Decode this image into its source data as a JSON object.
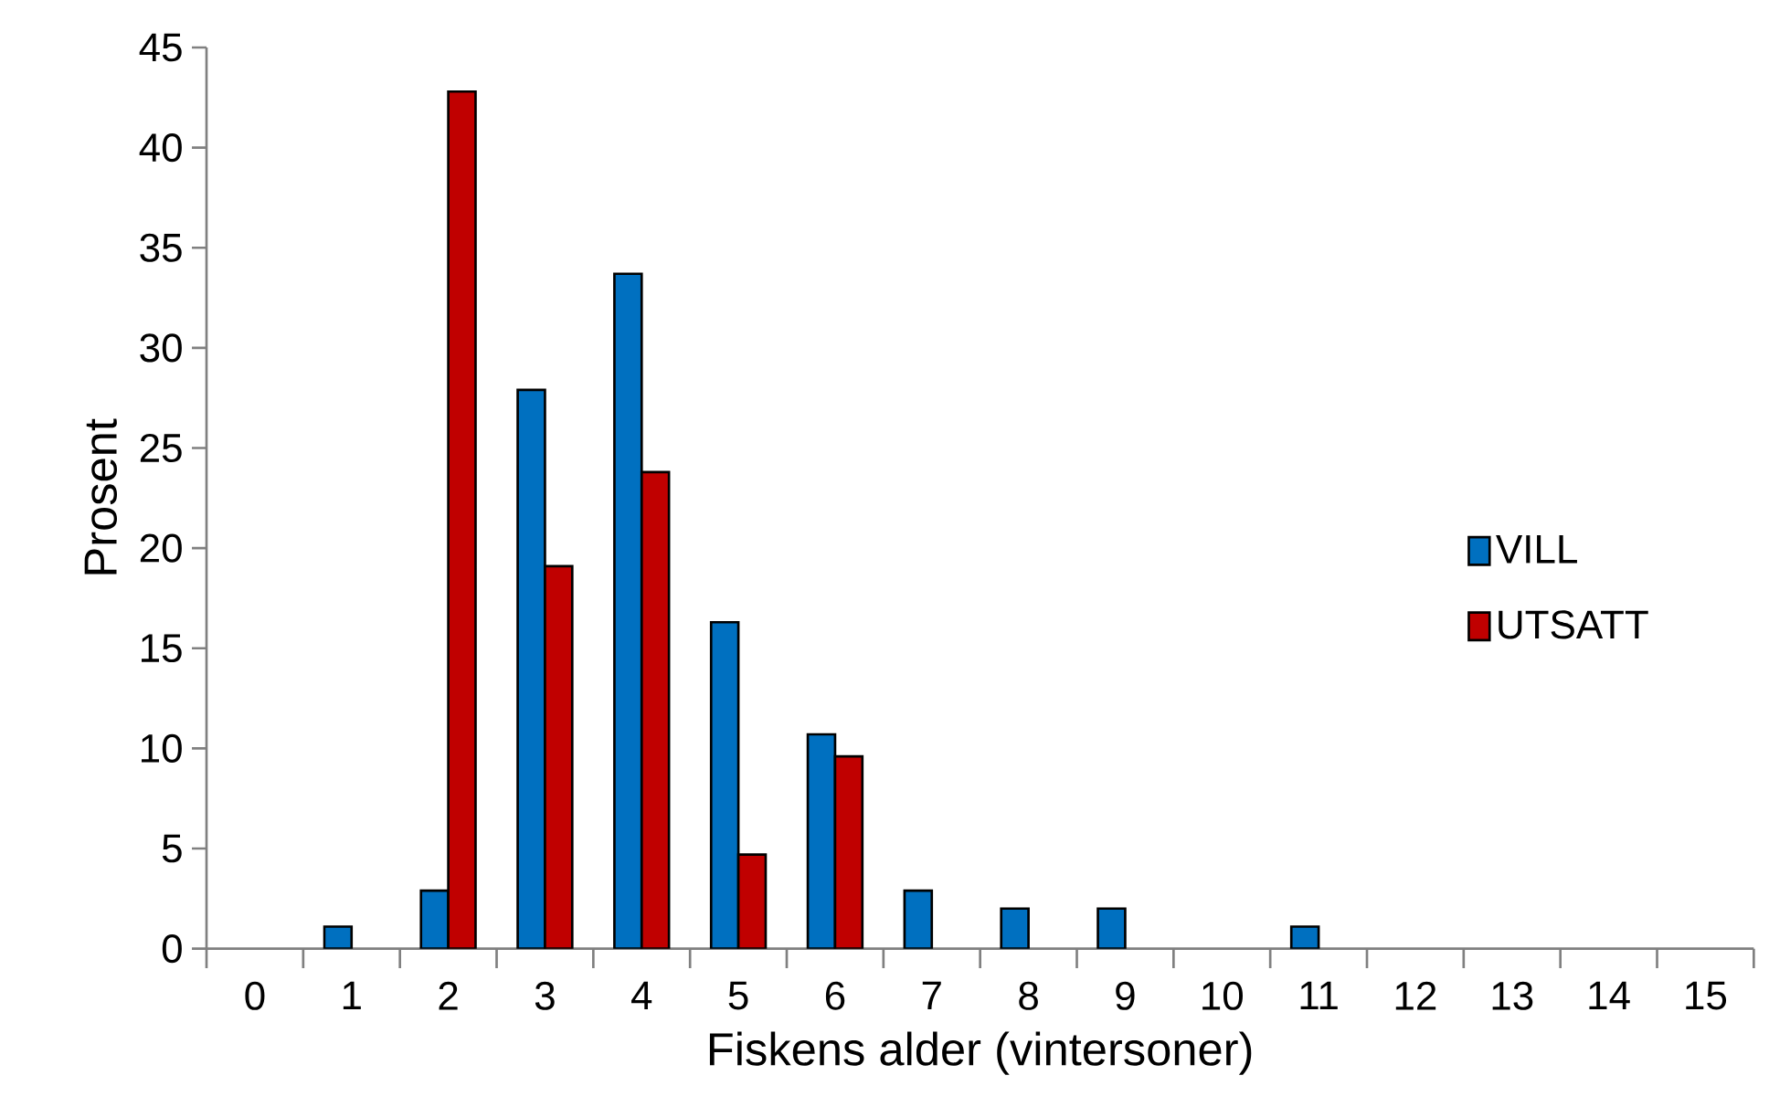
{
  "chart_data": {
    "type": "bar",
    "xlabel": "Fiskens alder (vintersoner)",
    "ylabel": "Prosent",
    "categories": [
      "0",
      "1",
      "2",
      "3",
      "4",
      "5",
      "6",
      "7",
      "8",
      "9",
      "10",
      "11",
      "12",
      "13",
      "14",
      "15"
    ],
    "series": [
      {
        "name": "VILL",
        "color": "#0070c0",
        "values": [
          null,
          1.1,
          2.9,
          27.9,
          33.7,
          16.3,
          10.7,
          2.9,
          2.0,
          2.0,
          null,
          1.1,
          null,
          null,
          null,
          null
        ]
      },
      {
        "name": "UTSATT",
        "color": "#c00000",
        "values": [
          null,
          null,
          42.8,
          19.1,
          23.8,
          4.7,
          9.6,
          null,
          null,
          null,
          null,
          null,
          null,
          null,
          null,
          null
        ]
      }
    ],
    "ylim": [
      0,
      45
    ],
    "yticks": [
      0,
      5,
      10,
      15,
      20,
      25,
      30,
      35,
      40,
      45
    ],
    "grid": false,
    "legend": "right"
  }
}
